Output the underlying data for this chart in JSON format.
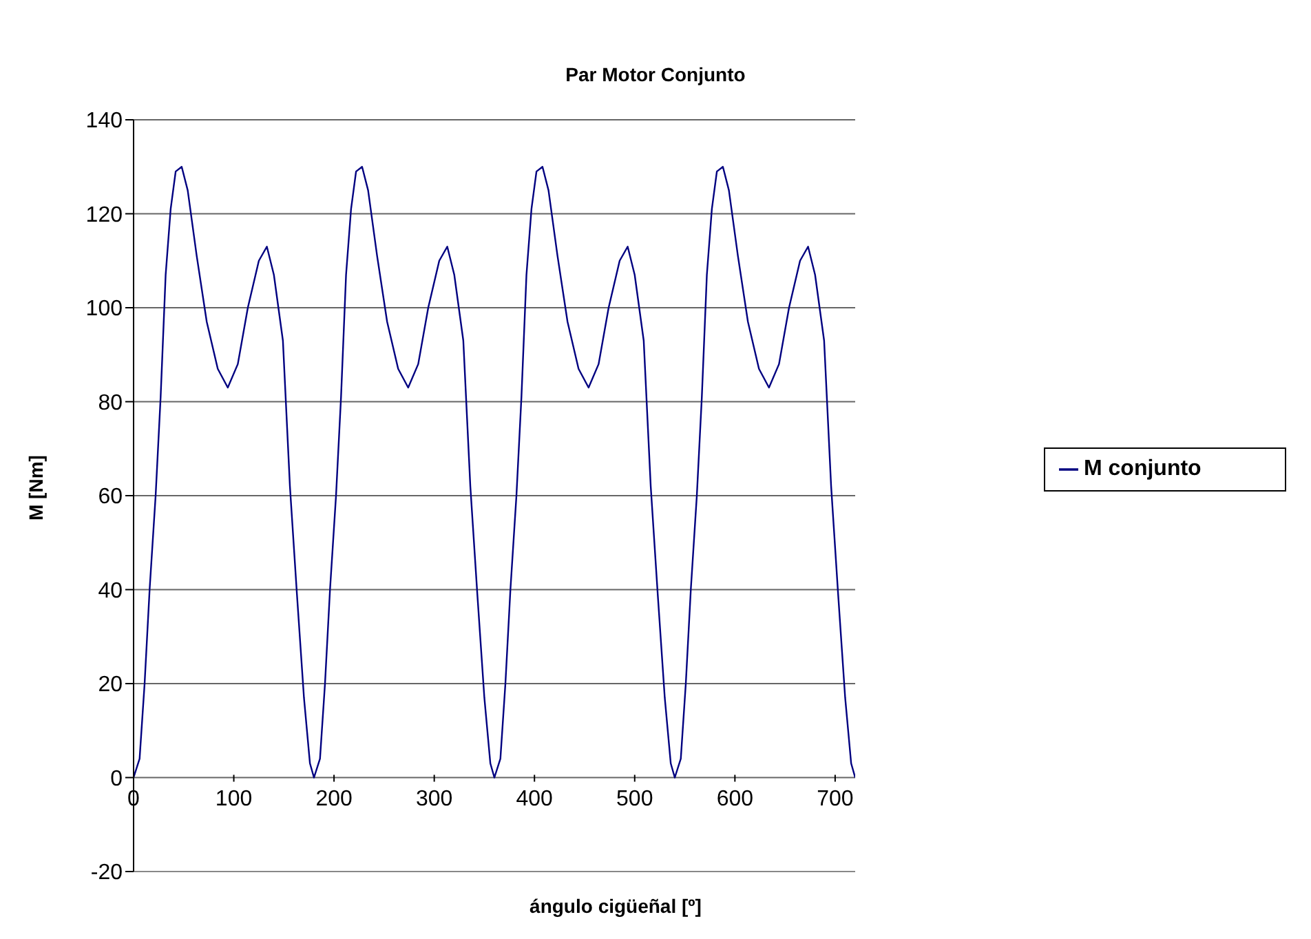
{
  "chart_data": {
    "type": "line",
    "title": "Par Motor Conjunto",
    "xlabel": "ángulo cigüeñal [º]",
    "ylabel": "M [Nm]",
    "x": [
      0,
      6,
      11,
      16,
      22,
      27,
      32,
      37,
      42,
      48,
      54,
      63,
      73,
      84,
      94,
      104,
      114,
      125,
      133,
      140,
      149,
      156,
      163,
      170,
      176,
      180,
      186,
      191,
      196,
      202,
      207,
      212,
      217,
      222,
      228,
      234,
      243,
      253,
      264,
      274,
      284,
      294,
      305,
      313,
      320,
      329,
      336,
      343,
      350,
      356,
      360,
      366,
      371,
      376,
      382,
      387,
      392,
      397,
      402,
      408,
      414,
      423,
      433,
      444,
      454,
      464,
      474,
      485,
      493,
      500,
      509,
      516,
      523,
      530,
      536,
      540,
      546,
      551,
      556,
      562,
      567,
      572,
      577,
      582,
      588,
      594,
      603,
      613,
      624,
      634,
      644,
      654,
      665,
      673,
      680,
      689,
      696,
      703,
      710,
      716,
      720
    ],
    "series": [
      {
        "name": "M conjunto",
        "color": "#000080",
        "values": [
          0,
          4,
          20,
          40,
          60,
          81,
          107,
          121,
          129,
          130,
          125,
          111,
          97,
          87,
          83,
          88,
          100,
          110,
          113,
          107,
          93,
          62,
          39,
          17,
          3,
          0,
          4,
          20,
          40,
          60,
          81,
          107,
          121,
          129,
          130,
          125,
          111,
          97,
          87,
          83,
          88,
          100,
          110,
          113,
          107,
          93,
          62,
          39,
          17,
          3,
          0,
          4,
          20,
          40,
          60,
          81,
          107,
          121,
          129,
          130,
          125,
          111,
          97,
          87,
          83,
          88,
          100,
          110,
          113,
          107,
          93,
          62,
          39,
          17,
          3,
          0,
          4,
          20,
          40,
          60,
          81,
          107,
          121,
          129,
          130,
          125,
          111,
          97,
          87,
          83,
          88,
          100,
          110,
          113,
          107,
          93,
          62,
          39,
          17,
          3,
          0
        ]
      }
    ],
    "xlim": [
      0,
      720
    ],
    "xticks": [
      0,
      100,
      200,
      300,
      400,
      500,
      600,
      700
    ],
    "ylim": [
      -20,
      140
    ],
    "yticks": [
      -20,
      0,
      20,
      40,
      60,
      80,
      100,
      120,
      140
    ],
    "grid": "y",
    "legend": "right",
    "marker": "none",
    "line_style": "solid"
  }
}
